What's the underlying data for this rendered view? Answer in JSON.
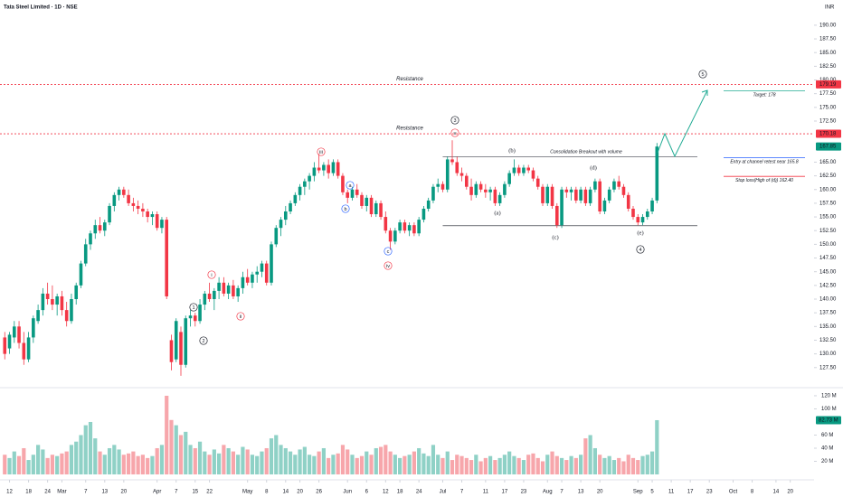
{
  "chart_data": {
    "type": "candlestick",
    "title": "Tata Steel Limited · 1D · NSE",
    "currency": "INR",
    "up_color": "#089981",
    "down_color": "#f23645",
    "xlim": [
      -1,
      170
    ],
    "ylim": [
      124,
      194.6
    ],
    "xticks": [
      {
        "value": 1,
        "label": "12"
      },
      {
        "value": 5,
        "label": "18"
      },
      {
        "value": 9,
        "label": "24"
      },
      {
        "value": 12,
        "label": "Mar"
      },
      {
        "value": 17,
        "label": "7"
      },
      {
        "value": 21,
        "label": "13"
      },
      {
        "value": 25,
        "label": "20"
      },
      {
        "value": 32,
        "label": "Apr"
      },
      {
        "value": 36,
        "label": "7"
      },
      {
        "value": 40,
        "label": "15"
      },
      {
        "value": 43,
        "label": "22"
      },
      {
        "value": 51,
        "label": "May"
      },
      {
        "value": 55,
        "label": "8"
      },
      {
        "value": 59,
        "label": "14"
      },
      {
        "value": 62,
        "label": "20"
      },
      {
        "value": 66,
        "label": "26"
      },
      {
        "value": 72,
        "label": "Jun"
      },
      {
        "value": 76,
        "label": "6"
      },
      {
        "value": 80,
        "label": "12"
      },
      {
        "value": 83,
        "label": "18"
      },
      {
        "value": 87,
        "label": "24"
      },
      {
        "value": 92,
        "label": "Jul"
      },
      {
        "value": 96,
        "label": "7"
      },
      {
        "value": 101,
        "label": "11"
      },
      {
        "value": 105,
        "label": "17"
      },
      {
        "value": 109,
        "label": "23"
      },
      {
        "value": 114,
        "label": "Aug"
      },
      {
        "value": 117,
        "label": "7"
      },
      {
        "value": 121,
        "label": "13"
      },
      {
        "value": 125,
        "label": "20"
      },
      {
        "value": 133,
        "label": "Sep"
      },
      {
        "value": 136,
        "label": "5"
      },
      {
        "value": 140,
        "label": "11"
      },
      {
        "value": 144,
        "label": "17"
      },
      {
        "value": 148,
        "label": "23"
      },
      {
        "value": 153,
        "label": "Oct"
      },
      {
        "value": 157,
        "label": "8"
      },
      {
        "value": 162,
        "label": "14"
      },
      {
        "value": 165,
        "label": "20"
      }
    ],
    "yticks": [
      {
        "value": 190,
        "label": "190.00"
      },
      {
        "value": 187.5,
        "label": "187.50"
      },
      {
        "value": 185,
        "label": "185.00"
      },
      {
        "value": 182.5,
        "label": "182.50"
      },
      {
        "value": 180,
        "label": "180.00"
      },
      {
        "value": 177.5,
        "label": "177.50"
      },
      {
        "value": 175,
        "label": "175.00"
      },
      {
        "value": 172.5,
        "label": "172.50"
      },
      {
        "value": 165,
        "label": "165.00"
      },
      {
        "value": 162.5,
        "label": "162.50"
      },
      {
        "value": 160,
        "label": "160.00"
      },
      {
        "value": 157.5,
        "label": "157.50"
      },
      {
        "value": 155,
        "label": "155.00"
      },
      {
        "value": 152.5,
        "label": "152.50"
      },
      {
        "value": 150,
        "label": "150.00"
      },
      {
        "value": 147.5,
        "label": "147.50"
      },
      {
        "value": 145,
        "label": "145.00"
      },
      {
        "value": 142.5,
        "label": "142.50"
      },
      {
        "value": 140,
        "label": "140.00"
      },
      {
        "value": 137.5,
        "label": "137.50"
      },
      {
        "value": 135,
        "label": "135.00"
      },
      {
        "value": 132.5,
        "label": "132.50"
      },
      {
        "value": 130,
        "label": "130.00"
      },
      {
        "value": 127.5,
        "label": "127.50"
      }
    ],
    "open": [
      133,
      131,
      133,
      135,
      132,
      129,
      133,
      136,
      138,
      141,
      140,
      139,
      140.5,
      138,
      136,
      140,
      142.5,
      146.5,
      150,
      152,
      153.5,
      152.5,
      154,
      157,
      159,
      160,
      159,
      157.5,
      157,
      156.5,
      156,
      155,
      155.5,
      153,
      154.5,
      132.5,
      129,
      134,
      128,
      136.5,
      137,
      136,
      139,
      141,
      140,
      141.5,
      143,
      141,
      142.5,
      140.5,
      142,
      144,
      143,
      144.5,
      145,
      146.5,
      143,
      150,
      153,
      154.5,
      156,
      157.5,
      159,
      160.5,
      161.5,
      162.5,
      164,
      163.5,
      164.5,
      163,
      165,
      162.5,
      159.5,
      158.5,
      160,
      159,
      157,
      158.5,
      155.5,
      157.5,
      155,
      152.5,
      150.5,
      152.5,
      154,
      152.5,
      153.5,
      152,
      154.5,
      156.5,
      158,
      160.5,
      161,
      160,
      165.5,
      165,
      163,
      162.5,
      160.5,
      159,
      161,
      160,
      159.5,
      160,
      157.5,
      159,
      161,
      163,
      164,
      163,
      164,
      163.5,
      162,
      160.5,
      157.5,
      160.5,
      157,
      153.5,
      160,
      159.5,
      160,
      158,
      160,
      157.5,
      160,
      161.5,
      156,
      158,
      160,
      161.5,
      160.5,
      159,
      156.5,
      155,
      154,
      155,
      156,
      158
    ],
    "high": [
      134,
      134,
      136,
      136,
      134,
      134,
      137,
      139,
      142,
      143,
      142.5,
      141,
      141.5,
      139.5,
      141,
      143,
      147,
      151,
      152.5,
      154.5,
      155,
      154.5,
      157.5,
      159.5,
      160.5,
      160.5,
      160,
      158.5,
      158,
      157.5,
      156.5,
      156,
      156,
      155,
      155,
      133.5,
      136.5,
      135,
      137,
      138,
      137.5,
      140,
      141.5,
      143,
      142,
      144,
      144,
      143,
      143.5,
      142.5,
      145,
      145.5,
      145,
      146,
      147,
      147,
      150.5,
      153.5,
      155,
      157,
      158,
      159.5,
      161,
      162,
      163,
      165,
      166.5,
      165,
      165.5,
      165.5,
      165.5,
      163,
      160,
      160.5,
      161,
      159.5,
      159,
      159,
      158,
      158,
      156,
      153,
      153,
      154.5,
      154.5,
      154,
      154,
      155,
      157,
      158.5,
      161,
      162,
      161.5,
      166,
      169,
      166,
      164,
      163,
      162,
      161.5,
      161.5,
      161,
      160.5,
      160.5,
      159.5,
      161.5,
      163.5,
      165.5,
      164.5,
      164.5,
      164.5,
      164,
      162.5,
      161,
      161,
      161,
      157.5,
      160.5,
      160.5,
      160.5,
      160.5,
      160.5,
      160.5,
      160.5,
      162,
      162,
      158.5,
      160.5,
      162,
      162.5,
      161,
      159.5,
      157,
      155.5,
      155.5,
      156.5,
      158.5,
      168.5
    ],
    "low": [
      129,
      130,
      132,
      131,
      128,
      128.5,
      132,
      135.5,
      137,
      139,
      138,
      137,
      137,
      135,
      135.5,
      139,
      142,
      146,
      149,
      151,
      152,
      151.5,
      153.5,
      156,
      158,
      158.5,
      157,
      156,
      155.5,
      155,
      154,
      153.5,
      152.5,
      152,
      140,
      127,
      128.5,
      126,
      127.5,
      135,
      135,
      135.5,
      138,
      139.5,
      138,
      140,
      140.5,
      140,
      140,
      139.5,
      141,
      142.5,
      142,
      143,
      144,
      142.5,
      142.5,
      149.5,
      151.5,
      153.5,
      155.5,
      157,
      158,
      159,
      160,
      161.5,
      163,
      162.5,
      162,
      162.5,
      162,
      159,
      157.5,
      158,
      158.5,
      156.5,
      156,
      155,
      155,
      154.5,
      152,
      149,
      150,
      152,
      152,
      151.5,
      151.5,
      151.5,
      154,
      156,
      157.5,
      159.5,
      159.5,
      159.5,
      164.5,
      162.5,
      161.5,
      160,
      158,
      158.5,
      159.5,
      158.5,
      158,
      157,
      157,
      158.5,
      160.5,
      162.5,
      162.5,
      162.5,
      163,
      161.5,
      160,
      157,
      157,
      156.5,
      153,
      153,
      158.5,
      158,
      157.5,
      157.5,
      157,
      157,
      159.5,
      155.5,
      155.5,
      157.5,
      159.5,
      160,
      158.5,
      156,
      154.5,
      153.5,
      153.5,
      154.5,
      155.5,
      157.5
    ],
    "close": [
      130,
      133.5,
      135,
      132,
      129,
      133,
      136.5,
      138,
      141,
      140,
      139,
      140.5,
      138,
      136,
      140,
      142.5,
      146.5,
      150,
      152,
      153.5,
      152.5,
      154,
      157,
      159,
      160,
      159,
      157.5,
      157,
      156.5,
      156,
      155,
      155.5,
      153,
      154.5,
      140.5,
      128.5,
      136,
      128,
      136.5,
      137,
      136,
      139,
      141,
      140,
      141.5,
      143,
      141,
      142.5,
      140.5,
      142,
      144,
      143,
      144.5,
      145,
      146.5,
      143,
      150,
      153,
      154.5,
      156,
      157.5,
      159,
      160.5,
      161.5,
      162.5,
      164,
      163.5,
      164.5,
      163,
      165,
      162.5,
      159.5,
      158.5,
      160,
      159,
      157,
      158.5,
      155.5,
      157.5,
      155,
      152.5,
      150.5,
      152.5,
      154,
      152.5,
      153.5,
      152,
      154.5,
      156.5,
      158,
      160.5,
      161,
      160,
      165.5,
      165,
      163,
      162.5,
      160.5,
      159,
      161,
      160,
      159.5,
      160,
      157.5,
      159,
      161,
      163,
      164,
      163,
      164,
      163.5,
      162,
      160.5,
      157.5,
      160.5,
      157,
      153.5,
      160,
      159.5,
      160,
      158,
      160,
      157.5,
      160,
      161.5,
      156,
      158,
      160,
      161.5,
      160.5,
      159,
      156.5,
      155,
      154,
      155,
      156,
      158,
      167.85
    ],
    "last_label": "167.85",
    "volume": {
      "up_color": "#8fd1c6",
      "down_color": "#f7a6ab",
      "ylim": [
        0,
        130
      ],
      "yticks": [
        {
          "value": 120,
          "label": "120 M"
        },
        {
          "value": 100,
          "label": "100 M"
        },
        {
          "value": 60,
          "label": "60 M"
        },
        {
          "value": 40,
          "label": "40 M"
        },
        {
          "value": 20,
          "label": "20 M"
        }
      ],
      "values": [
        30,
        25,
        35,
        28,
        40,
        22,
        30,
        45,
        38,
        25,
        30,
        28,
        32,
        35,
        45,
        50,
        60,
        75,
        80,
        55,
        35,
        30,
        40,
        45,
        38,
        30,
        32,
        35,
        28,
        30,
        25,
        28,
        40,
        45,
        120,
        83,
        75,
        60,
        65,
        45,
        40,
        50,
        35,
        30,
        38,
        32,
        45,
        40,
        35,
        30,
        42,
        38,
        30,
        28,
        35,
        40,
        55,
        60,
        45,
        40,
        35,
        30,
        38,
        42,
        30,
        28,
        35,
        40,
        25,
        30,
        32,
        45,
        38,
        30,
        25,
        28,
        35,
        30,
        40,
        42,
        45,
        35,
        30,
        25,
        28,
        30,
        35,
        40,
        32,
        28,
        45,
        30,
        25,
        35,
        22,
        30,
        28,
        25,
        22,
        30,
        20,
        25,
        28,
        22,
        25,
        30,
        35,
        28,
        25,
        22,
        30,
        32,
        25,
        20,
        30,
        35,
        28,
        25,
        22,
        28,
        25,
        30,
        55,
        60,
        40,
        30,
        25,
        28,
        22,
        25,
        20,
        30,
        25,
        22,
        28,
        30,
        35,
        82.73
      ],
      "last_label": "82.73 M"
    },
    "annotations": {
      "resistance": [
        {
          "text": "Resistance",
          "price": {
            "value": 179.19,
            "label": "179.19"
          }
        },
        {
          "text": "Resistance",
          "price": {
            "value": 170.18,
            "label": "170.18"
          }
        }
      ],
      "waves": [
        "1",
        "2",
        "3",
        "4",
        "5"
      ],
      "subwaves_red": [
        "i",
        "ii",
        "iii",
        "iv",
        "v"
      ],
      "subwaves_blue": [
        "a",
        "b",
        "c"
      ],
      "corrective": [
        "(a)",
        "(b)",
        "(c)",
        "(d)",
        "(e)"
      ],
      "consolidation": {
        "text": "Consolidation Breakout with volume",
        "top": 166,
        "bottom": 153.4
      },
      "target": {
        "text": "Target: 178",
        "level": 178
      },
      "entry": {
        "text": "Entry at channel retest near 165.8",
        "level": 165.8
      },
      "stop": {
        "text": "Stop loss(High of (d)) 162.40",
        "level": 162.4
      }
    }
  }
}
